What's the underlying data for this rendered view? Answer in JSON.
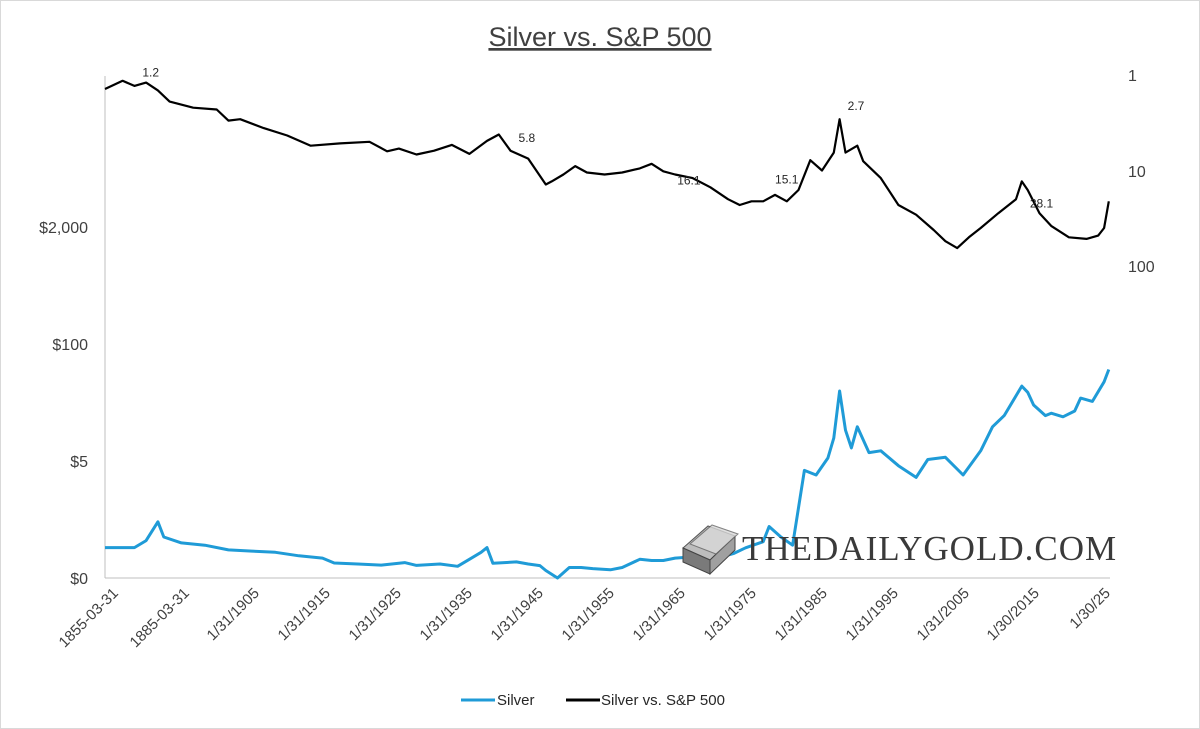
{
  "chart_data": {
    "type": "line",
    "title": "Silver vs. S&P 500",
    "left_axis": {
      "scale": "piecewise",
      "tick_labels": [
        "$0",
        "$5",
        "$100",
        "$2,000"
      ]
    },
    "right_axis": {
      "scale": "log",
      "inverted": true,
      "tick_labels": [
        "1",
        "10",
        "100"
      ]
    },
    "x_tick_labels": [
      "1855-03-31",
      "1885-03-31",
      "1/31/1905",
      "1/31/1915",
      "1/31/1925",
      "1/31/1935",
      "1/31/1945",
      "1/31/1955",
      "1/31/1965",
      "1/31/1975",
      "1/31/1985",
      "1/31/1995",
      "1/31/2005",
      "1/30/2015",
      "1/30/25"
    ],
    "series": [
      {
        "name": "Silver",
        "color": "#1f9bd7",
        "axis": "left",
        "points": [
          [
            1855,
            1.3
          ],
          [
            1860,
            1.3
          ],
          [
            1862,
            1.6
          ],
          [
            1864,
            2.4
          ],
          [
            1865,
            1.75
          ],
          [
            1868,
            1.5
          ],
          [
            1872,
            1.4
          ],
          [
            1876,
            1.2
          ],
          [
            1880,
            1.15
          ],
          [
            1884,
            1.1
          ],
          [
            1888,
            0.95
          ],
          [
            1892,
            0.85
          ],
          [
            1894,
            0.64
          ],
          [
            1898,
            0.6
          ],
          [
            1902,
            0.55
          ],
          [
            1906,
            0.66
          ],
          [
            1908,
            0.54
          ],
          [
            1912,
            0.6
          ],
          [
            1915,
            0.5
          ],
          [
            1917,
            0.8
          ],
          [
            1919,
            1.1
          ],
          [
            1920,
            1.3
          ],
          [
            1921,
            0.63
          ],
          [
            1925,
            0.69
          ],
          [
            1927,
            0.6
          ],
          [
            1929,
            0.53
          ],
          [
            1930,
            0.32
          ],
          [
            1932,
            0.0
          ],
          [
            1934,
            0.45
          ],
          [
            1936,
            0.45
          ],
          [
            1938,
            0.4
          ],
          [
            1941,
            0.35
          ],
          [
            1943,
            0.45
          ],
          [
            1946,
            0.8
          ],
          [
            1948,
            0.75
          ],
          [
            1950,
            0.75
          ],
          [
            1952,
            0.85
          ],
          [
            1955,
            0.9
          ],
          [
            1960,
            0.91
          ],
          [
            1962,
            1.05
          ],
          [
            1964,
            1.29
          ],
          [
            1967,
            1.55
          ],
          [
            1968,
            2.2
          ],
          [
            1970,
            1.75
          ],
          [
            1972,
            1.4
          ],
          [
            1974,
            4.6
          ],
          [
            1976,
            4.4
          ],
          [
            1978,
            5.4
          ],
          [
            1979,
            9
          ],
          [
            1980,
            30
          ],
          [
            1981,
            11
          ],
          [
            1982,
            7
          ],
          [
            1983,
            12
          ],
          [
            1985,
            6.2
          ],
          [
            1987,
            6.5
          ],
          [
            1990,
            4.8
          ],
          [
            1993,
            4.3
          ],
          [
            1995,
            5.2
          ],
          [
            1998,
            5.5
          ],
          [
            2001,
            4.4
          ],
          [
            2004,
            6.5
          ],
          [
            2006,
            12
          ],
          [
            2008,
            16
          ],
          [
            2011,
            34
          ],
          [
            2012,
            29
          ],
          [
            2013,
            21
          ],
          [
            2015,
            16
          ],
          [
            2016,
            17
          ],
          [
            2018,
            15.5
          ],
          [
            2020,
            18
          ],
          [
            2021,
            25
          ],
          [
            2023,
            23
          ],
          [
            2025,
            38
          ],
          [
            2025.8,
            52
          ]
        ]
      },
      {
        "name": "Silver vs. S&P 500",
        "color": "#000000",
        "axis": "right",
        "points": [
          [
            1855,
            1.4
          ],
          [
            1858,
            1.15
          ],
          [
            1860,
            1.3
          ],
          [
            1862,
            1.2
          ],
          [
            1864,
            1.45
          ],
          [
            1866,
            1.9
          ],
          [
            1870,
            2.2
          ],
          [
            1874,
            2.3
          ],
          [
            1876,
            3.0
          ],
          [
            1878,
            2.9
          ],
          [
            1882,
            3.6
          ],
          [
            1886,
            4.3
          ],
          [
            1890,
            5.5
          ],
          [
            1895,
            5.2
          ],
          [
            1900,
            5.0
          ],
          [
            1903,
            6.3
          ],
          [
            1905,
            5.9
          ],
          [
            1908,
            6.8
          ],
          [
            1911,
            6.2
          ],
          [
            1914,
            5.4
          ],
          [
            1917,
            6.7
          ],
          [
            1920,
            4.9
          ],
          [
            1922,
            4.2
          ],
          [
            1924,
            6.2
          ],
          [
            1927,
            7.5
          ],
          [
            1930,
            14
          ],
          [
            1931,
            13
          ],
          [
            1933,
            11
          ],
          [
            1935,
            9
          ],
          [
            1937,
            10.5
          ],
          [
            1940,
            11
          ],
          [
            1943,
            10.5
          ],
          [
            1946,
            9.5
          ],
          [
            1948,
            8.5
          ],
          [
            1950,
            10.2
          ],
          [
            1952,
            11
          ],
          [
            1955,
            12
          ],
          [
            1958,
            15
          ],
          [
            1961,
            20
          ],
          [
            1963,
            23
          ],
          [
            1965,
            21
          ],
          [
            1967,
            21
          ],
          [
            1969,
            18
          ],
          [
            1971,
            21
          ],
          [
            1973,
            16
          ],
          [
            1975,
            7.8
          ],
          [
            1977,
            10
          ],
          [
            1979,
            6.5
          ],
          [
            1980,
            2.9
          ],
          [
            1981,
            6.5
          ],
          [
            1983,
            5.5
          ],
          [
            1984,
            8
          ],
          [
            1987,
            12
          ],
          [
            1990,
            23
          ],
          [
            1993,
            29
          ],
          [
            1996,
            42
          ],
          [
            1998,
            55
          ],
          [
            2000,
            65
          ],
          [
            2002,
            50
          ],
          [
            2004,
            40
          ],
          [
            2007,
            28
          ],
          [
            2010,
            20
          ],
          [
            2011,
            13
          ],
          [
            2012,
            16
          ],
          [
            2014,
            28
          ],
          [
            2016,
            38
          ],
          [
            2019,
            50
          ],
          [
            2022,
            52
          ],
          [
            2024,
            48
          ],
          [
            2025,
            40
          ],
          [
            2025.8,
            21
          ]
        ]
      }
    ],
    "annotations": [
      {
        "label": "1.2",
        "x": 1860,
        "y": 1.2,
        "series": "Silver vs. S&P 500"
      },
      {
        "label": "5.8",
        "x": 1924,
        "y": 5.8,
        "series": "Silver vs. S&P 500"
      },
      {
        "label": "16.1",
        "x": 1951,
        "y": 16.1,
        "series": "Silver vs. S&P 500"
      },
      {
        "label": "15.1",
        "x": 1974,
        "y": 15.1,
        "series": "Silver vs. S&P 500"
      },
      {
        "label": "2.7",
        "x": 1980,
        "y": 2.7,
        "series": "Silver vs. S&P 500"
      },
      {
        "label": "28.1",
        "x": 2011,
        "y": 28.1,
        "series": "Silver vs. S&P 500"
      }
    ],
    "legend_position": "bottom"
  },
  "watermark": "THEDAILYGOLD.COM"
}
